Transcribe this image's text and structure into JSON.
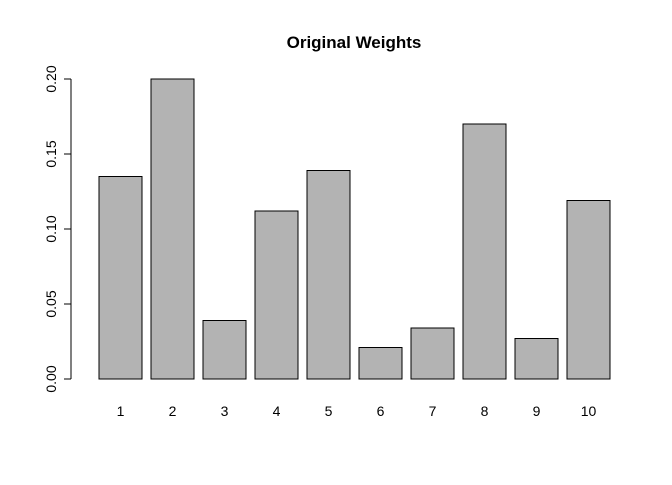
{
  "chart_data": {
    "type": "bar",
    "title": "Original Weights",
    "xlabel": "",
    "ylabel": "",
    "categories": [
      "1",
      "2",
      "3",
      "4",
      "5",
      "6",
      "7",
      "8",
      "9",
      "10"
    ],
    "values": [
      0.135,
      0.2,
      0.039,
      0.112,
      0.139,
      0.021,
      0.034,
      0.17,
      0.027,
      0.119
    ],
    "ylim": [
      0,
      0.2
    ],
    "yticks": [
      "0.00",
      "0.05",
      "0.10",
      "0.15",
      "0.20"
    ],
    "grid": false,
    "legend": "none",
    "colors": {
      "bar_fill": "#b3b3b3",
      "bar_stroke": "#000000",
      "axis": "#000000",
      "text": "#000000"
    }
  }
}
